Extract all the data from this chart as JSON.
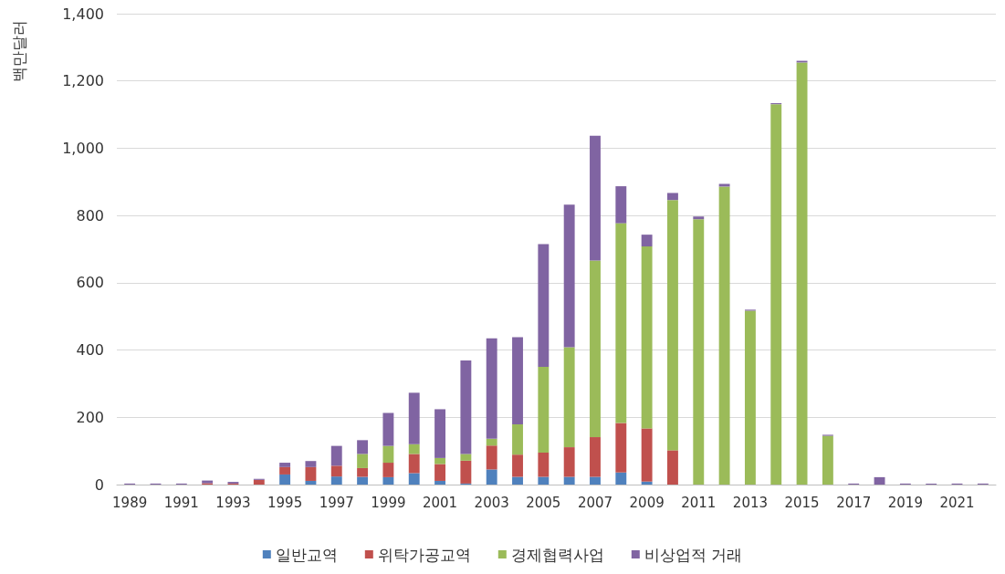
{
  "chart_data": {
    "type": "bar",
    "stacked": true,
    "ylabel": "백만달러",
    "categories": [
      "1989",
      null,
      "1991",
      null,
      "1993",
      null,
      "1995",
      null,
      "1997",
      null,
      "1999",
      null,
      "2001",
      null,
      "2003",
      null,
      "2005",
      null,
      "2007",
      null,
      "2009",
      null,
      "2011",
      null,
      "2013",
      null,
      "2015",
      null,
      "2017",
      null,
      "2019",
      null,
      "2021",
      null
    ],
    "series": [
      {
        "name": "일반교역",
        "color": "#4f81bd",
        "values": [
          0,
          0,
          0,
          0,
          0,
          0,
          30,
          11,
          24,
          23,
          22,
          34,
          11,
          3,
          45,
          23,
          23,
          23,
          23,
          36,
          9,
          0,
          0,
          0,
          0,
          0,
          0,
          0,
          0,
          0,
          0,
          0,
          0,
          0
        ]
      },
      {
        "name": "위탁가공교역",
        "color": "#c0504d",
        "values": [
          0,
          0,
          0,
          4,
          3,
          14,
          22,
          41,
          32,
          26,
          43,
          57,
          50,
          68,
          71,
          66,
          72,
          88,
          118,
          147,
          158,
          102,
          0,
          0,
          0,
          0,
          0,
          0,
          0,
          0,
          0,
          0,
          0,
          0
        ]
      },
      {
        "name": "경제협력사업",
        "color": "#9bbb59",
        "values": [
          0,
          0,
          0,
          0,
          0,
          0,
          0,
          0,
          0,
          42,
          50,
          29,
          18,
          20,
          20,
          90,
          255,
          297,
          525,
          594,
          541,
          744,
          789,
          886,
          517,
          1131,
          1255,
          145,
          0,
          0,
          0,
          0,
          0,
          0
        ]
      },
      {
        "name": "비상업적 거래",
        "color": "#8064a2",
        "values": [
          3,
          3,
          3,
          8,
          5,
          3,
          13,
          18,
          59,
          41,
          98,
          153,
          145,
          278,
          299,
          259,
          365,
          424,
          371,
          110,
          35,
          21,
          8,
          8,
          3,
          3,
          5,
          3,
          3,
          22,
          3,
          3,
          3,
          3
        ]
      }
    ],
    "ylim": [
      0,
      1400
    ],
    "yticks": [
      0,
      200,
      400,
      600,
      800,
      {
        "value": 1000,
        "label": "1,000"
      },
      {
        "value": 1200,
        "label": "1,200"
      },
      {
        "value": 1400,
        "label": "1,400"
      }
    ],
    "grid": "y",
    "legend": "bottom"
  }
}
